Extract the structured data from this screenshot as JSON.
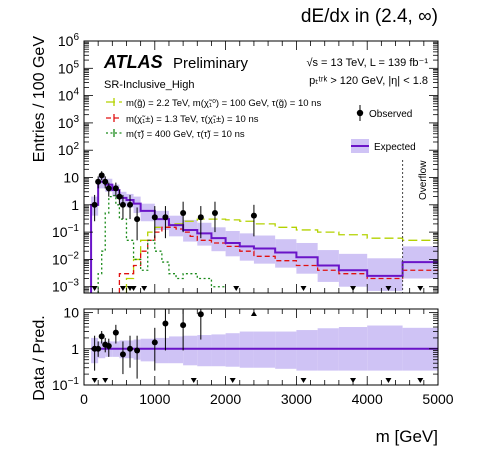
{
  "header": {
    "title": "dE/dx in (2.4, ∞)",
    "atlas": "ATLAS",
    "preliminary": "Preliminary",
    "region": "SR-Inclusive_High",
    "energy_line": "√s = 13 TeV,  L = 139 fb⁻¹",
    "cut_line": "pₜᵗʳᵏ > 120 GeV, |η| < 1.8"
  },
  "legend": {
    "signals": [
      "m(g̃) = 2.2 TeV, m(χ̃₁⁰) = 100 GeV, τ(g̃) = 10 ns",
      "m(χ̃₁±) = 1.3 TeV, τ(χ̃₁±) = 10 ns",
      "m(τ̃) =  400 GeV, τ(τ̃) = 10 ns"
    ],
    "observed": "Observed",
    "expected": "Expected",
    "overflow": "Overflow"
  },
  "axes": {
    "top_ylabel": "Entries / 100 GeV",
    "bottom_ylabel": "Data / Pred.",
    "xlabel": "m [GeV]",
    "x_ticks": [
      "0",
      "1000",
      "2000",
      "3000",
      "4000",
      "5000"
    ],
    "top_y_ticks": [
      {
        "m": "10",
        "e": "−3",
        "v": 0.001
      },
      {
        "m": "10",
        "e": "−2",
        "v": 0.01
      },
      {
        "m": "10",
        "e": "−1",
        "v": 0.1
      },
      {
        "m": "1",
        "e": "",
        "v": 1
      },
      {
        "m": "10",
        "e": "",
        "v": 10
      },
      {
        "m": "10",
        "e": "2",
        "v": 100
      },
      {
        "m": "10",
        "e": "3",
        "v": 1000
      },
      {
        "m": "10",
        "e": "4",
        "v": 10000
      },
      {
        "m": "10",
        "e": "5",
        "v": 100000
      },
      {
        "m": "10",
        "e": "6",
        "v": 1000000
      }
    ],
    "bottom_y_ticks": [
      {
        "m": "10",
        "e": "−1",
        "v": 0.1
      },
      {
        "m": "1",
        "e": "",
        "v": 1
      },
      {
        "m": "10",
        "e": "",
        "v": 10
      }
    ]
  },
  "colors": {
    "expected": "#6a14c8",
    "band": "#cfc3f5",
    "gluino": "#b4d200",
    "chargino": "#e01010",
    "stau": "#1a8a1a",
    "observed": "#000000"
  },
  "chart_data": [
    {
      "type": "histogram",
      "title": "dE/dx in (2.4, ∞)",
      "xlabel": "m [GeV]",
      "ylabel": "Entries / 100 GeV",
      "xlim": [
        0,
        5000
      ],
      "ylim": [
        0.0005,
        1000000
      ],
      "yscale": "log",
      "grid": false,
      "legend_position": "top",
      "overflow_edge": 4500,
      "expected": {
        "name": "Expected",
        "edges": [
          100,
          200,
          300,
          400,
          500,
          600,
          700,
          800,
          1000,
          1200,
          1400,
          1600,
          1800,
          2000,
          2200,
          2400,
          2700,
          3000,
          3300,
          3600,
          4000,
          4500,
          5000
        ],
        "values": [
          1.0,
          7.0,
          5.5,
          3.5,
          1.8,
          1.5,
          1.1,
          0.6,
          0.3,
          0.18,
          0.12,
          0.09,
          0.06,
          0.04,
          0.03,
          0.025,
          0.018,
          0.012,
          0.006,
          0.004,
          0.0025,
          0.008
        ],
        "band_lo": [
          0.4,
          4.0,
          3.0,
          2.0,
          1.0,
          0.8,
          0.5,
          0.25,
          0.12,
          0.07,
          0.045,
          0.032,
          0.02,
          0.013,
          0.009,
          0.007,
          0.005,
          0.003,
          0.0015,
          0.001,
          0.0007,
          0.002
        ],
        "band_hi": [
          2.0,
          11.0,
          9.0,
          5.5,
          3.0,
          2.5,
          2.0,
          1.1,
          0.6,
          0.4,
          0.28,
          0.22,
          0.15,
          0.11,
          0.09,
          0.075,
          0.055,
          0.04,
          0.022,
          0.016,
          0.011,
          0.03
        ]
      },
      "signals": [
        {
          "name": "m(g̃) = 2.2 TeV, m(χ̃₁⁰) = 100 GeV, τ(g̃) = 10 ns",
          "style": "dashed",
          "edges": [
            600,
            700,
            800,
            900,
            1000,
            1200,
            1400,
            1600,
            1800,
            2000,
            2200,
            2400,
            2700,
            3000,
            3300,
            3600,
            4000,
            4500,
            5000
          ],
          "values": [
            0.002,
            0.01,
            0.05,
            0.1,
            0.15,
            0.2,
            0.25,
            0.3,
            0.3,
            0.28,
            0.25,
            0.2,
            0.15,
            0.12,
            0.1,
            0.08,
            0.06,
            0.05
          ]
        },
        {
          "name": "m(χ̃₁±) = 1.3 TeV, τ(χ̃₁±) = 10 ns",
          "style": "dashed",
          "edges": [
            500,
            700,
            800,
            900,
            1000,
            1100,
            1200,
            1300,
            1400,
            1500,
            1600,
            1800,
            2000,
            2200,
            2400,
            2700,
            3000,
            3300,
            3600,
            4000,
            4500,
            5000
          ],
          "values": [
            0.003,
            0.006,
            0.02,
            0.05,
            0.1,
            0.15,
            0.15,
            0.13,
            0.1,
            0.07,
            0.05,
            0.04,
            0.03,
            0.02,
            0.013,
            0.009,
            0.006,
            0.004,
            0.003,
            0.002,
            0.004
          ]
        },
        {
          "name": "m(τ̃) =  400 GeV, τ(τ̃) = 10 ns",
          "style": "dotted",
          "edges": [
            200,
            250,
            300,
            350,
            400,
            450,
            500,
            600,
            700,
            800,
            900,
            1000,
            1100,
            1200,
            1300,
            1400,
            1600,
            1800,
            2000
          ],
          "values": [
            0.003,
            0.02,
            0.5,
            2.0,
            2.2,
            1.0,
            0.3,
            0.05,
            0.01,
            0.004,
            0.05,
            0.02,
            0.008,
            0.003,
            0.002,
            0.003,
            0.002,
            0.001
          ]
        }
      ],
      "observed": {
        "name": "Observed",
        "x": [
          150,
          200,
          250,
          300,
          350,
          450,
          500,
          550,
          650,
          750,
          1000,
          1150,
          1400,
          1650,
          1850,
          2400
        ],
        "y": [
          1.0,
          7.0,
          12.0,
          7.0,
          4.0,
          4.0,
          2.0,
          1.0,
          1.0,
          0.3,
          0.35,
          0.35,
          0.5,
          0.35,
          0.5,
          0.4
        ],
        "ylo": [
          0.25,
          4.0,
          8.0,
          4.0,
          2.0,
          2.0,
          1.0,
          0.3,
          0.3,
          0.05,
          0.06,
          0.06,
          0.1,
          0.06,
          0.1,
          0.07
        ],
        "yhi": [
          2.3,
          11.0,
          17.0,
          11.0,
          6.5,
          6.5,
          3.5,
          2.3,
          2.3,
          0.8,
          0.9,
          0.9,
          1.3,
          0.9,
          1.3,
          1.0
        ],
        "upper_limit_arrows_x": [
          150,
          550,
          650,
          700,
          850,
          2150,
          3100,
          3800,
          4300,
          4750
        ]
      }
    },
    {
      "type": "ratio",
      "xlabel": "m [GeV]",
      "ylabel": "Data / Pred.",
      "xlim": [
        0,
        5000
      ],
      "ylim": [
        0.1,
        10
      ],
      "yscale": "log",
      "reference_line": 1,
      "band_lo": [
        0.4,
        0.55,
        0.6,
        0.6,
        0.55,
        0.55,
        0.5,
        0.45,
        0.4,
        0.4,
        0.35,
        0.33,
        0.33,
        0.32,
        0.3,
        0.3,
        0.28,
        0.25,
        0.25,
        0.25,
        0.25,
        0.25
      ],
      "band_hi": [
        2.0,
        1.6,
        1.6,
        1.6,
        1.7,
        1.7,
        1.8,
        1.9,
        2.0,
        2.2,
        2.3,
        2.4,
        2.5,
        2.7,
        3.0,
        3.0,
        3.0,
        3.3,
        3.7,
        4.0,
        4.4,
        3.8
      ],
      "points": {
        "x": [
          150,
          200,
          250,
          300,
          350,
          450,
          550,
          650,
          750,
          1000,
          1150,
          1400,
          1650
        ],
        "y": [
          1.0,
          1.0,
          2.2,
          1.3,
          1.2,
          2.8,
          0.7,
          1.0,
          0.9,
          1.5,
          5.0,
          4.5,
          9.0
        ],
        "ylo": [
          0.25,
          0.6,
          1.4,
          0.8,
          0.6,
          1.4,
          0.2,
          0.3,
          0.15,
          0.25,
          0.9,
          0.9,
          1.8
        ],
        "yhi": [
          2.3,
          1.6,
          3.1,
          2.0,
          1.9,
          4.6,
          1.6,
          2.3,
          2.3,
          3.8,
          13.0,
          12.0,
          23.0
        ]
      },
      "upper_limit_arrows_x": [
        150,
        300,
        1550,
        2100,
        3100,
        3800,
        4300,
        4750
      ],
      "up_arrows_x": [
        2400
      ]
    }
  ]
}
